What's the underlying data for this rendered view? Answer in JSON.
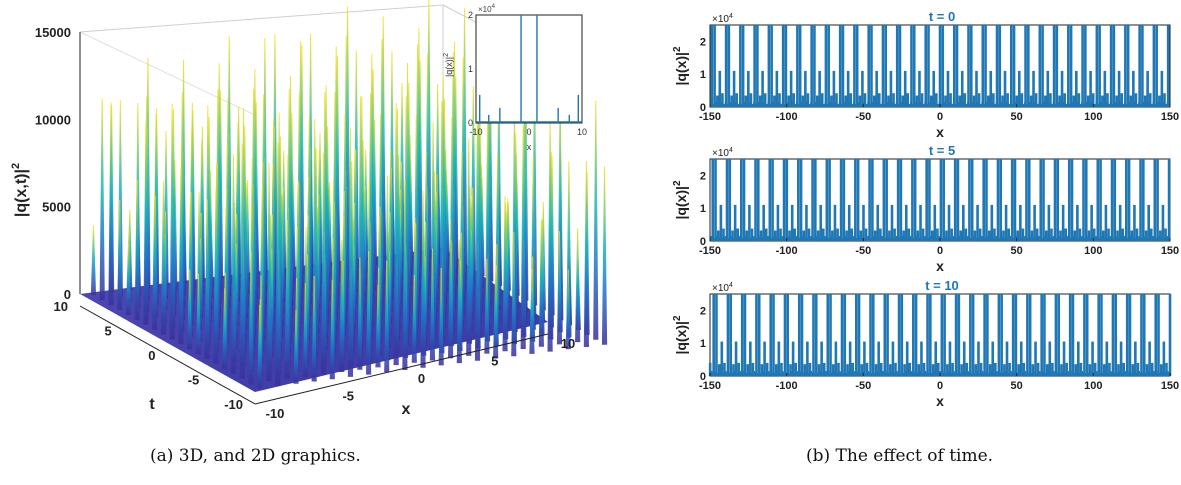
{
  "captions": {
    "a": "(a) 3D, and 2D graphics.",
    "b": "(b) The effect of time."
  },
  "colors": {
    "line": "#1f77b4",
    "title": "#1f77b4",
    "surface_low": "#3b2e9a",
    "surface_mid": "#1ab4b8",
    "surface_high": "#f6e11c"
  },
  "chart_data": [
    {
      "type": "surface",
      "name_of_panel": "a-3d",
      "xlabel": "x",
      "ylabel": "t",
      "zlabel": "|q(x,t)|",
      "zlabel_exponent": "2",
      "xlim": [
        -10,
        10
      ],
      "ylim": [
        -10,
        10
      ],
      "zlim": [
        0,
        15000
      ],
      "x_ticks": [
        "-10",
        "-5",
        "0",
        "5",
        "10"
      ],
      "y_ticks": [
        "-10",
        "-5",
        "0",
        "5",
        "10"
      ],
      "z_ticks": [
        "0",
        "5000",
        "10000",
        "15000"
      ]
    },
    {
      "type": "line",
      "name_of_panel": "a-inset",
      "xlabel": "x",
      "ylabel": "|q(x)|",
      "ylabel_exponent": "2",
      "xlim": [
        -10,
        10
      ],
      "ylim": [
        0,
        20000
      ],
      "x_ticks": [
        "-10",
        "0",
        "10"
      ],
      "y_ticks": [
        "0",
        "1",
        "2"
      ],
      "y_multiplier": "×10",
      "y_multiplier_exp": "4",
      "peaks": [
        {
          "x": -9.3,
          "y": 5200
        },
        {
          "x": -7.6,
          "y": 1500
        },
        {
          "x": -5.5,
          "y": 2800
        },
        {
          "x": -1.5,
          "y": 20000
        },
        {
          "x": 1.5,
          "y": 20000
        },
        {
          "x": 5.5,
          "y": 2800
        },
        {
          "x": 7.6,
          "y": 1500
        },
        {
          "x": 9.3,
          "y": 5200
        }
      ]
    },
    {
      "type": "line",
      "name_of_panel": "b-t0",
      "title": "t = 0",
      "xlabel": "x",
      "ylabel": "|q(x)|",
      "ylabel_exponent": "2",
      "xlim": [
        -150,
        150
      ],
      "ylim": [
        0,
        25000
      ],
      "x_ticks": [
        "-150",
        "-100",
        "-50",
        "0",
        "50",
        "100",
        "150"
      ],
      "y_ticks": [
        "0",
        "1",
        "2"
      ],
      "y_multiplier": "×10",
      "y_multiplier_exp": "4",
      "period": 9.3,
      "peaks_in_period": [
        {
          "dx": 0.0,
          "y": 25000
        },
        {
          "dx": 1.8,
          "y": 25000
        },
        {
          "dx": 3.6,
          "y": 3500
        },
        {
          "dx": 5.2,
          "y": 11000
        },
        {
          "dx": 6.9,
          "y": 4200
        }
      ]
    },
    {
      "type": "line",
      "name_of_panel": "b-t5",
      "title": "t = 5",
      "xlabel": "x",
      "ylabel": "|q(x)|",
      "ylabel_exponent": "2",
      "xlim": [
        -150,
        150
      ],
      "ylim": [
        0,
        25000
      ],
      "x_ticks": [
        "-150",
        "-100",
        "-50",
        "0",
        "50",
        "100",
        "150"
      ],
      "y_ticks": [
        "0",
        "1",
        "2"
      ],
      "y_multiplier": "×10",
      "y_multiplier_exp": "4",
      "period": 9.3,
      "peaks_in_period": [
        {
          "dx": 0.6,
          "y": 25000
        },
        {
          "dx": 2.4,
          "y": 25000
        },
        {
          "dx": 4.2,
          "y": 3200
        },
        {
          "dx": 5.9,
          "y": 11000
        },
        {
          "dx": 7.6,
          "y": 3800
        }
      ]
    },
    {
      "type": "line",
      "name_of_panel": "b-t10",
      "title": "t = 10",
      "xlabel": "x",
      "ylabel": "|q(x)|",
      "ylabel_exponent": "2",
      "xlim": [
        -150,
        150
      ],
      "ylim": [
        0,
        25000
      ],
      "x_ticks": [
        "-150",
        "-100",
        "-50",
        "0",
        "50",
        "100",
        "150"
      ],
      "y_ticks": [
        "0",
        "1",
        "2"
      ],
      "y_multiplier": "×10",
      "y_multiplier_exp": "4",
      "period": 9.3,
      "peaks_in_period": [
        {
          "dx": 1.2,
          "y": 25000
        },
        {
          "dx": 3.0,
          "y": 25000
        },
        {
          "dx": 4.8,
          "y": 3600
        },
        {
          "dx": 6.5,
          "y": 10500
        },
        {
          "dx": 8.2,
          "y": 4000
        }
      ]
    }
  ]
}
